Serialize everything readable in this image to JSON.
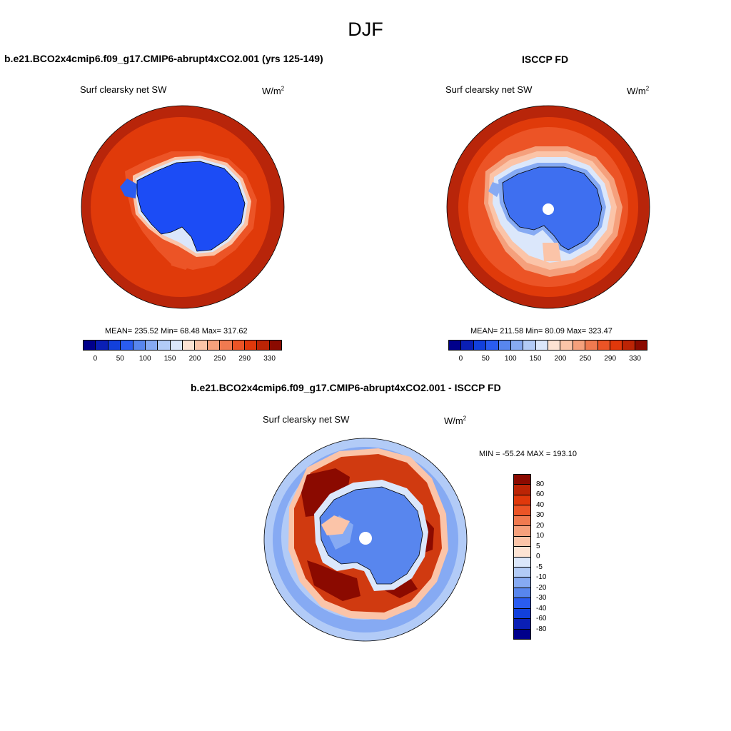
{
  "title": "DJF",
  "panels": [
    {
      "case_title": "b.e21.BCO2x4cmip6.f09_g17.CMIP6-abrupt4xCO2.001 (yrs 125-149)",
      "variable": "Surf clearsky net SW",
      "units": "W/m",
      "units_exp": "2",
      "stats": "MEAN= 235.52  Min=  68.48  Max= 317.62"
    },
    {
      "case_title": "ISCCP FD",
      "variable": "Surf clearsky net SW",
      "units": "W/m",
      "units_exp": "2",
      "stats": "MEAN= 211.58  Min=  80.09  Max= 323.47"
    },
    {
      "case_title": "b.e21.BCO2x4cmip6.f09_g17.CMIP6-abrupt4xCO2.001 - ISCCP FD",
      "variable": "Surf clearsky net SW",
      "units": "W/m",
      "units_exp": "2",
      "stats": "MIN = -55.24 MAX = 193.10"
    }
  ],
  "colorbar_abs": {
    "colors": [
      "#00008b",
      "#0a1fb5",
      "#1240dc",
      "#2a5cf0",
      "#5886ee",
      "#86aaf3",
      "#b2cbf7",
      "#dbe7fb",
      "#fde3d3",
      "#fbc4a8",
      "#f5a07c",
      "#f07a50",
      "#ec5426",
      "#e0380b",
      "#bc2405",
      "#8b0a00"
    ],
    "tick_labels": [
      "0",
      "50",
      "100",
      "150",
      "200",
      "250",
      "290",
      "330"
    ]
  },
  "colorbar_diff": {
    "colors": [
      "#8b0a00",
      "#bc2405",
      "#e0380b",
      "#ec5426",
      "#f07a50",
      "#f5a07c",
      "#fbc4a8",
      "#fde3d3",
      "#dbe7fb",
      "#b2cbf7",
      "#86aaf3",
      "#5886ee",
      "#2a5cf0",
      "#1240dc",
      "#0a1fb5",
      "#00008b"
    ],
    "tick_labels": [
      "80",
      "60",
      "40",
      "30",
      "20",
      "10",
      "5",
      "0",
      "-5",
      "-10",
      "-20",
      "-30",
      "-40",
      "-60",
      "-80"
    ]
  },
  "map_colors": {
    "ocean_dark": "#b8250a",
    "ocean_red": "#e03a0a",
    "ocean_orange": "#ec5426",
    "ocean_light": "#f5a07c",
    "ocean_pale": "#fbc4a8",
    "ice_pale": "#dbe7fb",
    "land_blue": "#2a5cf0",
    "land_mid": "#5886ee",
    "diff_dark": "#8b0a00",
    "diff_red": "#d03a10",
    "diff_pale_blue": "#b2cbf7",
    "diff_light_blue": "#86aaf3"
  }
}
